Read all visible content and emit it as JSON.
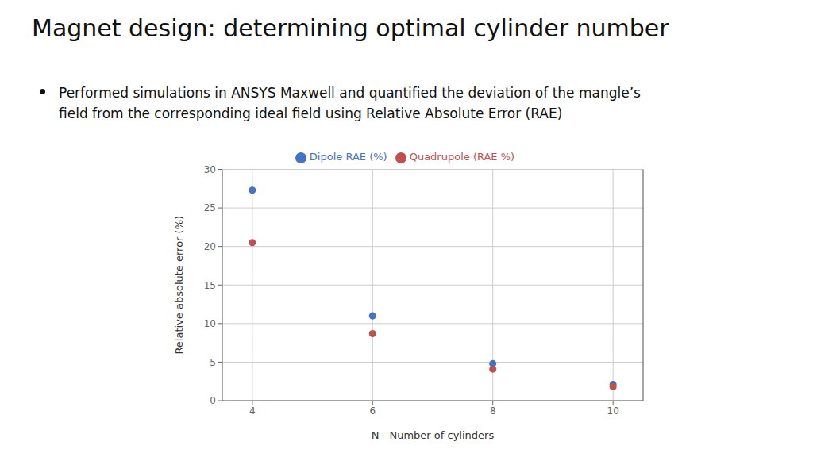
{
  "chart_data": {
    "type": "scatter",
    "title": "Magnet design: determining optimal cylinder number",
    "annotations": [
      "Performed simulations in ANSYS Maxwell and quantified the deviation of the mangle’s",
      "field from the corresponding ideal field using Relative Absolute Error (RAE)"
    ],
    "x_label": "N - Number of cylinders",
    "y_label": "Relative absolute error (%)",
    "x": [
      4,
      6,
      8,
      10
    ],
    "series": [
      {
        "name": "Dipole RAE (%)",
        "color": "#4472C4",
        "values": [
          27.3,
          11.0,
          4.8,
          2.1
        ]
      },
      {
        "name": "Quadrupole (RAE %)",
        "color": "#C0504D",
        "values": [
          20.5,
          8.7,
          4.1,
          1.8
        ]
      }
    ],
    "xlim": [
      3.5,
      10.5
    ],
    "xticks": [
      4,
      6,
      8,
      10
    ],
    "ylim": [
      0,
      30
    ],
    "yticks": [
      0,
      5,
      10,
      15,
      20,
      25,
      30
    ],
    "grid": true,
    "legend": "top"
  }
}
